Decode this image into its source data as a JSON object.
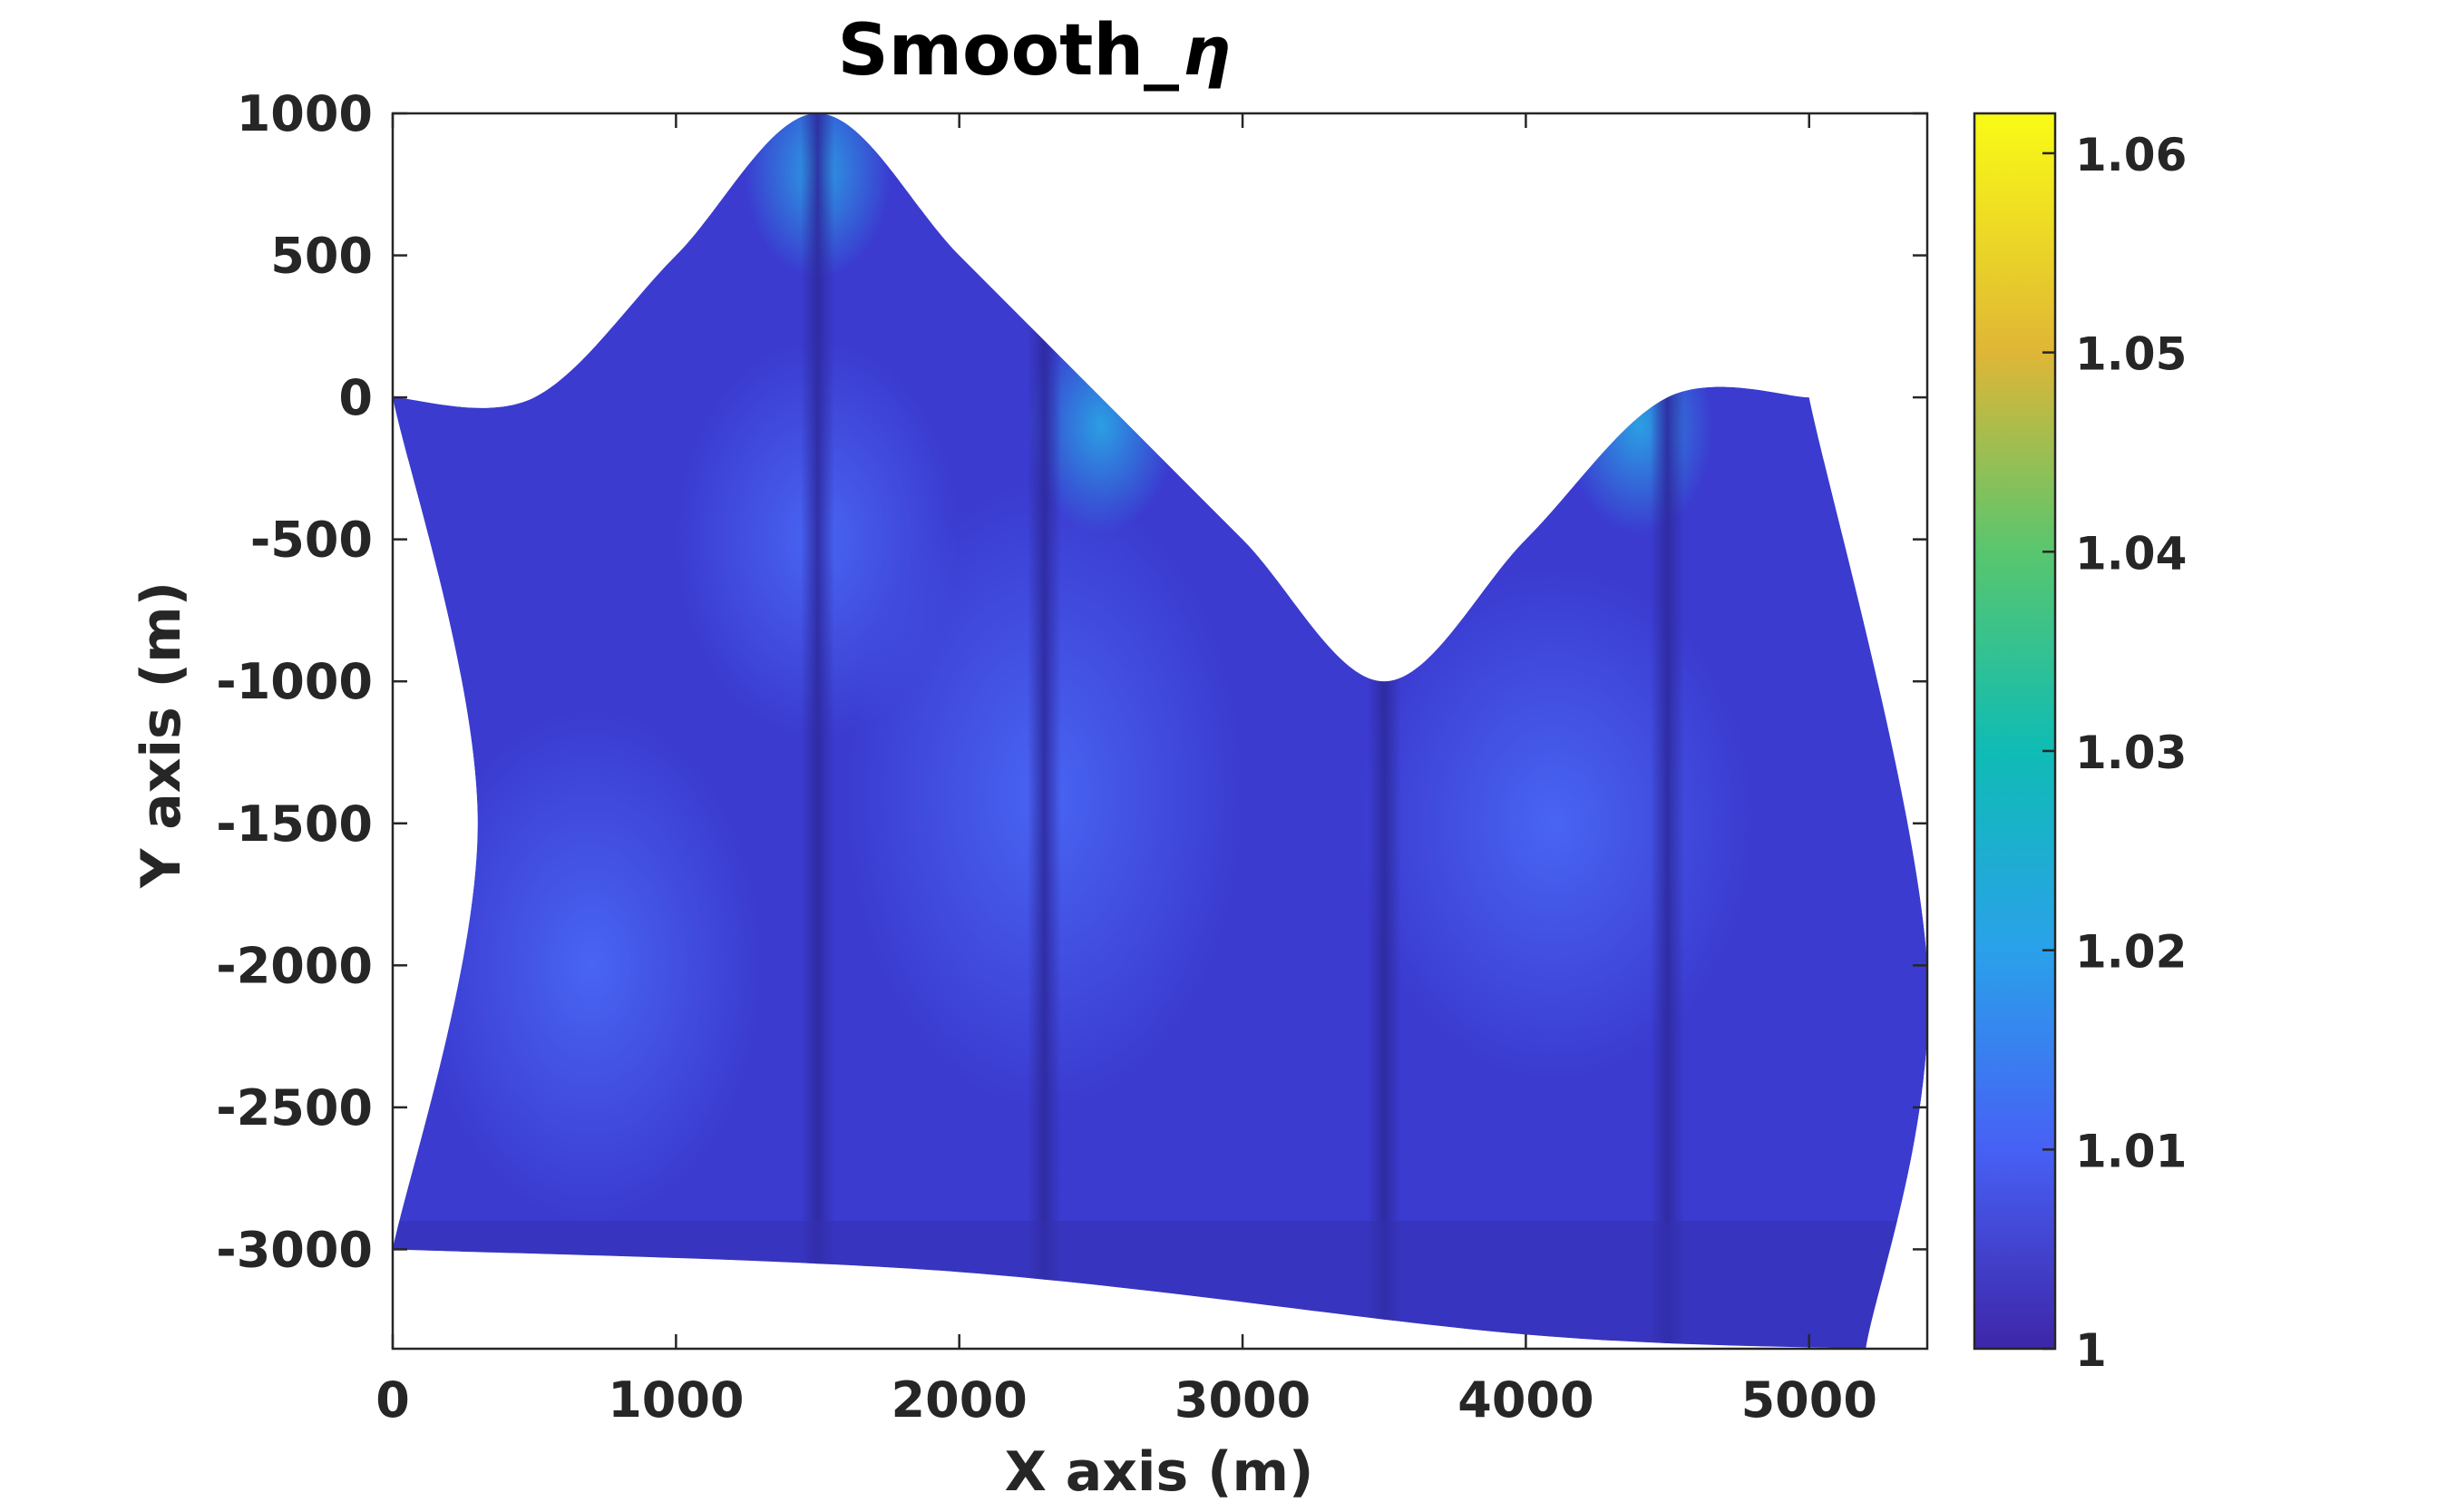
{
  "chart_data": {
    "type": "heatmap",
    "title": "Smooth_",
    "title_symbol": "η",
    "xlabel": "X axis (m)",
    "ylabel": "Y axis (m)",
    "xlim": [
      0,
      5417
    ],
    "ylim": [
      -3350,
      1000
    ],
    "x_ticks": [
      0,
      1000,
      2000,
      3000,
      4000,
      5000
    ],
    "y_ticks": [
      1000,
      500,
      0,
      -500,
      -1000,
      -1500,
      -2000,
      -2500,
      -3000
    ],
    "colorbar": {
      "colormap": "parula",
      "range": [
        1,
        1.062
      ],
      "ticks": [
        1,
        1.01,
        1.02,
        1.03,
        1.04,
        1.05,
        1.06
      ],
      "tick_labels": [
        "1",
        "1.01",
        "1.02",
        "1.03",
        "1.04",
        "1.05",
        "1.06"
      ],
      "stops": [
        {
          "value": 1.0,
          "color": "#3e26a8"
        },
        {
          "value": 1.01,
          "color": "#4760f5"
        },
        {
          "value": 1.02,
          "color": "#2aa1ea"
        },
        {
          "value": 1.03,
          "color": "#0fbcb5"
        },
        {
          "value": 1.04,
          "color": "#58c66e"
        },
        {
          "value": 1.05,
          "color": "#dfb636"
        },
        {
          "value": 1.062,
          "color": "#f9fb15"
        }
      ]
    },
    "domain": {
      "top_boundary": [
        [
          0,
          0
        ],
        [
          500,
          0
        ],
        [
          1000,
          500
        ],
        [
          1500,
          1000
        ],
        [
          2000,
          500
        ],
        [
          2500,
          0
        ],
        [
          3000,
          -500
        ],
        [
          3500,
          -1000
        ],
        [
          4000,
          -500
        ],
        [
          4500,
          0
        ],
        [
          5000,
          0
        ]
      ],
      "right_boundary": [
        [
          5000,
          0
        ],
        [
          5417,
          -2000
        ],
        [
          5200,
          -3350
        ]
      ],
      "bottom_boundary": [
        [
          5200,
          -3350
        ],
        [
          4000,
          -3300
        ],
        [
          2000,
          -3080
        ],
        [
          0,
          -3000
        ]
      ],
      "left_boundary": [
        [
          0,
          -3000
        ],
        [
          300,
          -1500
        ],
        [
          0,
          0
        ]
      ]
    },
    "features": {
      "max_value_near": [
        [
          1500,
          800
        ],
        [
          4400,
          -100
        ],
        [
          2500,
          -100
        ]
      ],
      "low_value_ridges_x": [
        1500,
        2300,
        3500,
        4500
      ]
    }
  }
}
